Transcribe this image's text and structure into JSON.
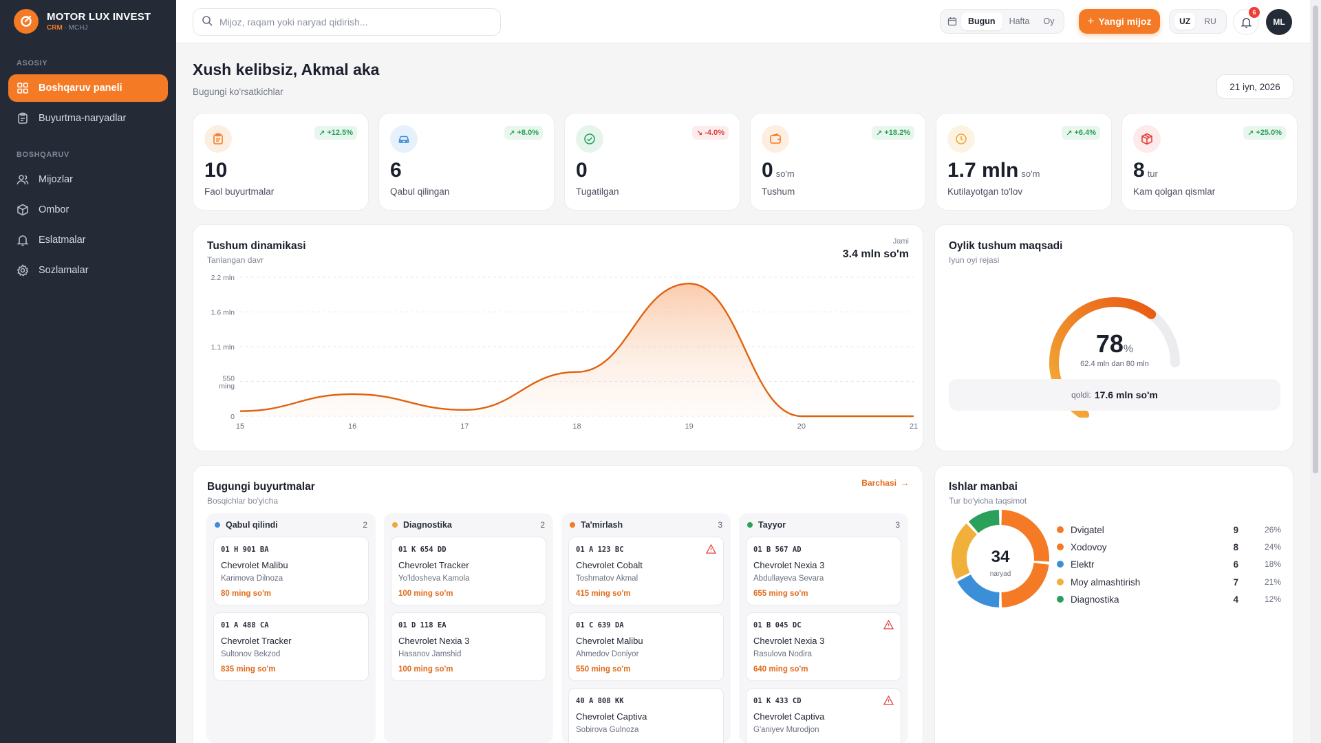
{
  "brand": {
    "title": "MOTOR LUX INVEST",
    "crm": "CRM",
    "sub": "· MCHJ"
  },
  "sidebar": {
    "sections": [
      {
        "label": "ASOSIY"
      },
      {
        "label": "BOSHQARUV"
      }
    ],
    "items": [
      {
        "label": "Boshqaruv paneli",
        "icon": "grid-icon",
        "active": true
      },
      {
        "label": "Buyurtma-naryadlar",
        "icon": "clipboard-icon"
      },
      {
        "label": "Mijozlar",
        "icon": "users-icon"
      },
      {
        "label": "Ombor",
        "icon": "box-icon"
      },
      {
        "label": "Eslatmalar",
        "icon": "bell-icon"
      },
      {
        "label": "Sozlamalar",
        "icon": "gear-icon"
      }
    ]
  },
  "topbar": {
    "search_placeholder": "Mijoz, raqam yoki naryad qidirish...",
    "periods": [
      "Bugun",
      "Hafta",
      "Oy"
    ],
    "active_period": "Bugun",
    "new_client": "Yangi mijoz",
    "langs": [
      "UZ",
      "RU"
    ],
    "active_lang": "UZ",
    "notifications": "6",
    "avatar": "ML"
  },
  "header": {
    "greeting": "Xush kelibsiz, Akmal aka",
    "subtitle": "Bugungi ko'rsatkichlar",
    "date": "21 iyn, 2026"
  },
  "kpis": [
    {
      "value": "10",
      "unit": "",
      "label": "Faol buyurtmalar",
      "trend": "+12.5%",
      "dir": "up",
      "icon": "clipboard-icon",
      "color": "#f47a25",
      "bg": "#fdeee2"
    },
    {
      "value": "6",
      "unit": "",
      "label": "Qabul qilingan",
      "trend": "+8.0%",
      "dir": "up",
      "icon": "car-icon",
      "color": "#3b8fd9",
      "bg": "#e6f1fb"
    },
    {
      "value": "0",
      "unit": "",
      "label": "Tugatilgan",
      "trend": "-4.0%",
      "dir": "down",
      "icon": "check-circle-icon",
      "color": "#2aa05a",
      "bg": "#e6f5ec"
    },
    {
      "value": "0",
      "unit": "so'm",
      "label": "Tushum",
      "trend": "+18.2%",
      "dir": "up",
      "icon": "wallet-icon",
      "color": "#f47a25",
      "bg": "#fdeee2"
    },
    {
      "value": "1.7 mln",
      "unit": "so'm",
      "label": "Kutilayotgan to'lov",
      "trend": "+6.4%",
      "dir": "up",
      "icon": "clock-icon",
      "color": "#f0a83a",
      "bg": "#fdf3e2"
    },
    {
      "value": "8",
      "unit": "tur",
      "label": "Kam qolgan qismlar",
      "trend": "+25.0%",
      "dir": "up",
      "icon": "package-icon",
      "color": "#e0403a",
      "bg": "#fdeaea"
    }
  ],
  "revenue": {
    "title": "Tushum dinamikasi",
    "subtitle": "Tanlangan davr",
    "total_label": "Jami",
    "total_value": "3.4 mln so'm"
  },
  "chart_data": {
    "type": "area",
    "x": [
      15,
      16,
      17,
      18,
      19,
      20,
      21
    ],
    "series": [
      {
        "values": [
          0.08,
          0.35,
          0.1,
          0.7,
          2.1,
          0,
          0
        ]
      }
    ],
    "y_unit": "mln so'm",
    "ylim": [
      0,
      2.2
    ],
    "y_ticks": [
      "0",
      "550 ming",
      "1.1 mln",
      "1.6 mln",
      "2.2 mln"
    ],
    "x_ticks": [
      "15",
      "16",
      "17",
      "18",
      "19",
      "20",
      "21"
    ],
    "grid": true,
    "color": "#e0620f"
  },
  "goal": {
    "title": "Oylik tushum maqsadi",
    "subtitle": "Iyun oyi rejasi",
    "percent": "78",
    "percent_sign": "%",
    "progress": 0.78,
    "detail": "62.4 mln dan 80 mln",
    "left_label": "qoldi:",
    "left_value": "17.6 mln so'm"
  },
  "orders": {
    "title": "Bugungi buyurtmalar",
    "subtitle": "Bosqichlar bo'yicha",
    "all_link": "Barchasi",
    "columns": [
      {
        "label": "Qabul qilindi",
        "count": "2",
        "color": "#3b8fd9",
        "cards": [
          {
            "plate": "01 H 901 BA",
            "car": "Chevrolet Malibu",
            "client": "Karimova Dilnoza",
            "price": "80 ming so'm",
            "warn": false
          },
          {
            "plate": "01 A 488 CA",
            "car": "Chevrolet Tracker",
            "client": "Sultonov Bekzod",
            "price": "835 ming so'm",
            "warn": false
          }
        ]
      },
      {
        "label": "Diagnostika",
        "count": "2",
        "color": "#f0a83a",
        "cards": [
          {
            "plate": "01 K 654 DD",
            "car": "Chevrolet Tracker",
            "client": "Yo'ldosheva Kamola",
            "price": "100 ming so'm",
            "warn": false
          },
          {
            "plate": "01 D 118 EA",
            "car": "Chevrolet Nexia 3",
            "client": "Hasanov Jamshid",
            "price": "100 ming so'm",
            "warn": false
          }
        ]
      },
      {
        "label": "Ta'mirlash",
        "count": "3",
        "color": "#f47a25",
        "cards": [
          {
            "plate": "01 A 123 BC",
            "car": "Chevrolet Cobalt",
            "client": "Toshmatov Akmal",
            "price": "415 ming so'm",
            "warn": true
          },
          {
            "plate": "01 C 639 DA",
            "car": "Chevrolet Malibu",
            "client": "Ahmedov Doniyor",
            "price": "550 ming so'm",
            "warn": false
          },
          {
            "plate": "40 A 808 KK",
            "car": "Chevrolet Captiva",
            "client": "Sobirova Gulnoza",
            "price": "",
            "warn": false
          }
        ]
      },
      {
        "label": "Tayyor",
        "count": "3",
        "color": "#2aa05a",
        "cards": [
          {
            "plate": "01 B 567 AD",
            "car": "Chevrolet Nexia 3",
            "client": "Abdullayeva Sevara",
            "price": "655 ming so'm",
            "warn": false
          },
          {
            "plate": "01 B 045 DC",
            "car": "Chevrolet Nexia 3",
            "client": "Rasulova Nodira",
            "price": "640 ming so'm",
            "warn": true
          },
          {
            "plate": "01 K 433 CD",
            "car": "Chevrolet Captiva",
            "client": "G'aniyev Murodjon",
            "price": "",
            "warn": true
          }
        ]
      }
    ]
  },
  "sources": {
    "title": "Ishlar manbai",
    "subtitle": "Tur bo'yicha taqsimot",
    "total": "34",
    "total_label": "naryad",
    "items": [
      {
        "label": "Dvigatel",
        "value": "9",
        "pct": "26%",
        "color": "#f47a25"
      },
      {
        "label": "Xodovoy",
        "value": "8",
        "pct": "24%",
        "color": "#f47a25"
      },
      {
        "label": "Elektr",
        "value": "6",
        "pct": "18%",
        "color": "#3b8fd9"
      },
      {
        "label": "Moy almashtirish",
        "value": "7",
        "pct": "21%",
        "color": "#f0b03a"
      },
      {
        "label": "Diagnostika",
        "value": "4",
        "pct": "12%",
        "color": "#2aa05a"
      }
    ]
  }
}
